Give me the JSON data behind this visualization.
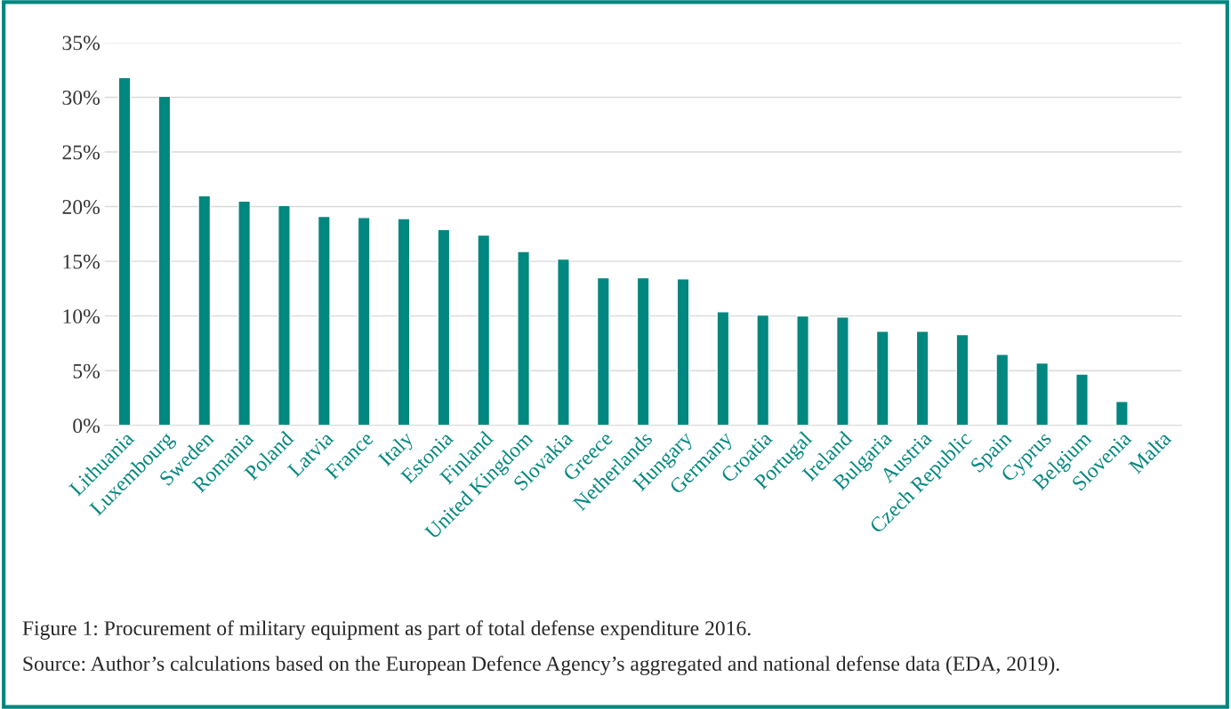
{
  "chart_data": {
    "type": "bar",
    "categories": [
      "Lithuania",
      "Luxembourg",
      "Sweden",
      "Romania",
      "Poland",
      "Latvia",
      "France",
      "Italy",
      "Estonia",
      "Finland",
      "United Kingdom",
      "Slovakia",
      "Greece",
      "Netherlands",
      "Hungary",
      "Germany",
      "Croatia",
      "Portugal",
      "Ireland",
      "Bulgaria",
      "Austria",
      "Czech Republic",
      "Spain",
      "Cyprus",
      "Belgium",
      "Slovenia",
      "Malta"
    ],
    "values": [
      31.8,
      30.1,
      21.0,
      20.5,
      20.1,
      19.1,
      19.0,
      18.9,
      17.9,
      17.4,
      15.9,
      15.2,
      13.5,
      13.5,
      13.4,
      10.4,
      10.1,
      10.0,
      9.9,
      8.6,
      8.6,
      8.3,
      6.5,
      5.7,
      4.7,
      2.2,
      null
    ],
    "color": "#00877f",
    "ylim": [
      0,
      35
    ],
    "yticks": [
      {
        "value": 0,
        "label": "0%"
      },
      {
        "value": 5,
        "label": "5%"
      },
      {
        "value": 10,
        "label": "10%"
      },
      {
        "value": 15,
        "label": "15%"
      },
      {
        "value": 20,
        "label": "20%"
      },
      {
        "value": 25,
        "label": "25%"
      },
      {
        "value": 30,
        "label": "30%"
      },
      {
        "value": 35,
        "label": "35%"
      }
    ],
    "grid": "y",
    "legend": false,
    "annotations": [
      "Figure 1: Procurement of military equipment as part of total defense expenditure 2016.",
      "Source: Author’s calculations based on the European Defence Agency’s aggregated and national defense data (EDA, 2019)."
    ]
  }
}
